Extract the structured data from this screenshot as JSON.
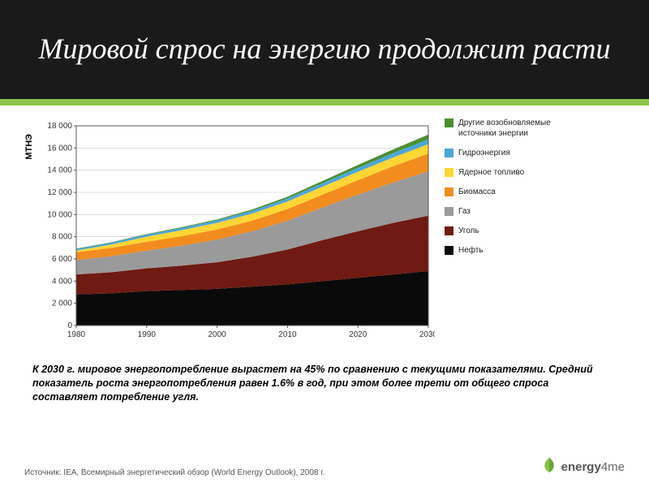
{
  "header": {
    "title": "Мировой спрос на энергию продолжит расти"
  },
  "accent_color": "#8bc34a",
  "chart": {
    "type": "area",
    "ylabel": "МТНЭ",
    "xlim": [
      1980,
      2030
    ],
    "ylim": [
      0,
      18000
    ],
    "ytick_step": 2000,
    "xticks": [
      1980,
      1990,
      2000,
      2010,
      2020,
      2030
    ],
    "yticks": [
      0,
      2000,
      4000,
      6000,
      8000,
      10000,
      12000,
      14000,
      16000,
      18000
    ],
    "ytick_labels": [
      "0",
      "2 000",
      "4 000",
      "6 000",
      "8 000",
      "10 000",
      "12 000",
      "14 000",
      "16 000",
      "18 000"
    ],
    "background_color": "#ffffff",
    "grid_color": "#c8c8c8",
    "axis_color": "#555555",
    "series": [
      {
        "name": "Нефть",
        "color": "#0a0a0a",
        "values": [
          2800,
          2900,
          3100,
          3200,
          3300,
          3500,
          3700,
          4000,
          4300,
          4600,
          4900
        ]
      },
      {
        "name": "Уголь",
        "color": "#6f1a12",
        "values": [
          1800,
          1900,
          2050,
          2200,
          2400,
          2700,
          3150,
          3700,
          4200,
          4650,
          5000
        ]
      },
      {
        "name": "Газ",
        "color": "#9a9a9a",
        "values": [
          1300,
          1450,
          1600,
          1800,
          2050,
          2300,
          2600,
          2950,
          3300,
          3650,
          4000
        ]
      },
      {
        "name": "Биомасса",
        "color": "#f28c1e",
        "values": [
          700,
          750,
          800,
          850,
          900,
          950,
          1050,
          1150,
          1300,
          1450,
          1600
        ]
      },
      {
        "name": "Ядерное топливо",
        "color": "#ffd633",
        "values": [
          150,
          300,
          450,
          550,
          600,
          650,
          680,
          720,
          760,
          800,
          850
        ]
      },
      {
        "name": "Гидроэнергия",
        "color": "#4da6d9",
        "values": [
          150,
          170,
          190,
          210,
          230,
          250,
          280,
          310,
          350,
          390,
          430
        ]
      },
      {
        "name": "Другие возобновляемые источники энергии",
        "color": "#4a8f2f",
        "values": [
          30,
          40,
          50,
          60,
          80,
          110,
          150,
          200,
          260,
          330,
          420
        ]
      }
    ],
    "x_sample_points": [
      1980,
      1985,
      1990,
      1995,
      2000,
      2005,
      2010,
      2015,
      2020,
      2025,
      2030
    ]
  },
  "legend": {
    "title_fontsize": 10,
    "items": [
      {
        "label": "Другие возобновляемые источники энергии",
        "color": "#4a8f2f"
      },
      {
        "label": "Гидроэнергия",
        "color": "#4da6d9"
      },
      {
        "label": "Ядерное топливо",
        "color": "#ffd633"
      },
      {
        "label": "Биомасса",
        "color": "#f28c1e"
      },
      {
        "label": "Газ",
        "color": "#9a9a9a"
      },
      {
        "label": "Уголь",
        "color": "#6f1a12"
      },
      {
        "label": "Нефть",
        "color": "#0a0a0a"
      }
    ]
  },
  "caption": "К 2030 г. мировое энергопотребление вырастет на 45% по сравнению с текущими показателями. Средний показатель роста энергопотребления равен 1.6% в год, при этом более трети от общего спроса составляет потребление угля.",
  "source": "Источник: IEA, Всемирный энергетический обзор (World Energy Outlook), 2008 г.",
  "logo": {
    "text_bold": "energy",
    "text_light": "4me",
    "icon_color": "#8bc34a"
  }
}
